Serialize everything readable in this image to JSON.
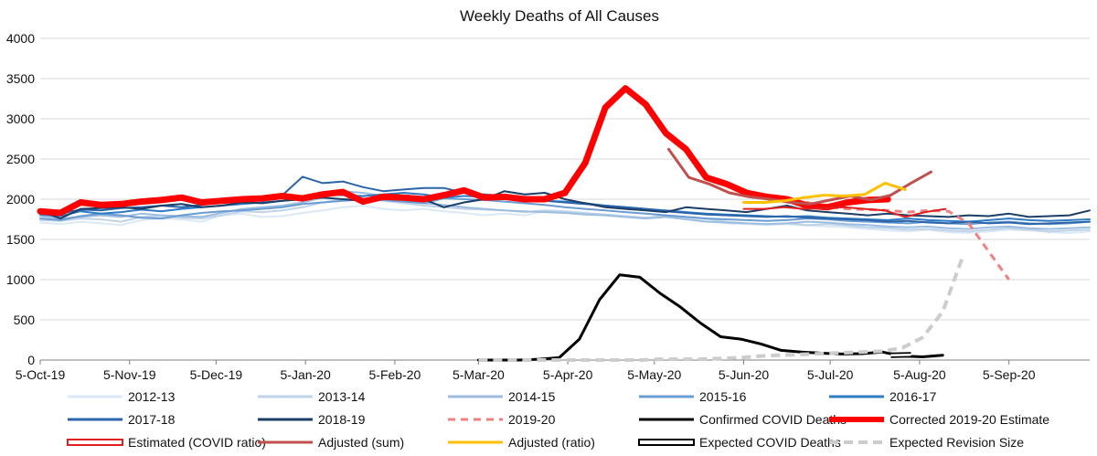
{
  "chart_data": {
    "type": "line",
    "title": "Weekly Deaths of All Causes",
    "xlabel": "",
    "ylabel": "",
    "ylim": [
      0,
      4000
    ],
    "yticks": [
      0,
      500,
      1000,
      1500,
      2000,
      2500,
      3000,
      3500,
      4000
    ],
    "x_date_range": [
      "2019-10-05",
      "2020-10-03"
    ],
    "x_ticks": [
      {
        "label": "5-Oct-19",
        "date": "2019-10-05"
      },
      {
        "label": "5-Nov-19",
        "date": "2019-11-05"
      },
      {
        "label": "5-Dec-19",
        "date": "2019-12-05"
      },
      {
        "label": "5-Jan-20",
        "date": "2020-01-05"
      },
      {
        "label": "5-Feb-20",
        "date": "2020-02-05"
      },
      {
        "label": "5-Mar-20",
        "date": "2020-03-05"
      },
      {
        "label": "5-Apr-20",
        "date": "2020-04-05"
      },
      {
        "label": "5-May-20",
        "date": "2020-05-05"
      },
      {
        "label": "5-Jun-20",
        "date": "2020-06-05"
      },
      {
        "label": "5-Jul-20",
        "date": "2020-07-05"
      },
      {
        "label": "5-Aug-20",
        "date": "2020-08-05"
      },
      {
        "label": "5-Sep-20",
        "date": "2020-09-05"
      }
    ],
    "grid": "horizontal",
    "legend_position": "bottom",
    "series": [
      {
        "name": "2012-13",
        "color": "#dbe8f5",
        "width": 2,
        "dash": "",
        "start": "2019-10-05",
        "values": [
          1710,
          1690,
          1720,
          1700,
          1680,
          1740,
          1760,
          1750,
          1720,
          1800,
          1820,
          1780,
          1790,
          1830,
          1860,
          1900,
          1920,
          1880,
          1860,
          1880,
          1850,
          1830,
          1800,
          1820,
          1800,
          1850,
          1840,
          1820,
          1800,
          1780,
          1760,
          1780,
          1760,
          1740,
          1700,
          1690,
          1680,
          1690,
          1670,
          1660,
          1650,
          1630,
          1610,
          1600,
          1620,
          1590,
          1580,
          1600,
          1620,
          1610,
          1590,
          1580,
          1600
        ]
      },
      {
        "name": "2013-14",
        "color": "#bfd3e9",
        "width": 2,
        "dash": "",
        "start": "2019-10-05",
        "values": [
          1740,
          1730,
          1760,
          1750,
          1720,
          1780,
          1790,
          1770,
          1760,
          1800,
          1850,
          1840,
          1860,
          1900,
          1960,
          2000,
          2020,
          1980,
          1950,
          1920,
          1900,
          1880,
          1870,
          1860,
          1840,
          1860,
          1850,
          1830,
          1810,
          1790,
          1770,
          1800,
          1780,
          1760,
          1720,
          1700,
          1690,
          1700,
          1680,
          1690,
          1670,
          1650,
          1640,
          1620,
          1630,
          1610,
          1600,
          1620,
          1640,
          1620,
          1600,
          1610,
          1620
        ]
      },
      {
        "name": "2014-15",
        "color": "#9dbde0",
        "width": 2,
        "dash": "",
        "start": "2019-10-05",
        "values": [
          1790,
          1760,
          1780,
          1800,
          1780,
          1820,
          1800,
          1790,
          1780,
          1830,
          1880,
          1900,
          1920,
          1960,
          2020,
          2100,
          2080,
          2040,
          1980,
          1950,
          1930,
          1900,
          1880,
          1860,
          1850,
          1840,
          1830,
          1810,
          1800,
          1780,
          1760,
          1780,
          1750,
          1720,
          1710,
          1700,
          1690,
          1700,
          1720,
          1710,
          1690,
          1680,
          1660,
          1650,
          1660,
          1640,
          1630,
          1650,
          1660,
          1640,
          1630,
          1640,
          1650
        ]
      },
      {
        "name": "2015-16",
        "color": "#6a9bd1",
        "width": 2,
        "dash": "",
        "start": "2019-10-05",
        "values": [
          1760,
          1740,
          1790,
          1820,
          1800,
          1770,
          1760,
          1800,
          1830,
          1850,
          1860,
          1880,
          1900,
          1940,
          1960,
          1980,
          2000,
          1990,
          1970,
          1950,
          2010,
          2000,
          1990,
          1970,
          1950,
          1930,
          1900,
          1880,
          1860,
          1840,
          1820,
          1800,
          1780,
          1760,
          1750,
          1740,
          1730,
          1740,
          1760,
          1750,
          1730,
          1720,
          1710,
          1700,
          1720,
          1700,
          1690,
          1710,
          1720,
          1700,
          1690,
          1700,
          1720
        ]
      },
      {
        "name": "2016-17",
        "color": "#2e7bc4",
        "width": 2,
        "dash": "",
        "start": "2019-10-05",
        "values": [
          1810,
          1790,
          1850,
          1820,
          1840,
          1870,
          1850,
          1880,
          1900,
          1920,
          1940,
          1960,
          1980,
          2000,
          2060,
          2050,
          2040,
          2060,
          2080,
          2060,
          2020,
          2040,
          2030,
          2010,
          1990,
          1980,
          1970,
          1950,
          1920,
          1900,
          1880,
          1860,
          1840,
          1820,
          1810,
          1800,
          1790,
          1780,
          1790,
          1770,
          1760,
          1750,
          1740,
          1760,
          1740,
          1730,
          1720,
          1740,
          1760,
          1740,
          1730,
          1740,
          1750
        ]
      },
      {
        "name": "2017-18",
        "color": "#2b64a8",
        "width": 2,
        "dash": "",
        "start": "2019-10-05",
        "values": [
          1840,
          1820,
          1870,
          1860,
          1890,
          1900,
          1920,
          1900,
          1930,
          1960,
          1980,
          2000,
          2050,
          2280,
          2200,
          2220,
          2150,
          2100,
          2120,
          2140,
          2140,
          2080,
          2060,
          2040,
          2000,
          1980,
          1960,
          1940,
          1920,
          1900,
          1880,
          1850,
          1830,
          1810,
          1800,
          1790,
          1780,
          1790,
          1770,
          1760,
          1750,
          1740,
          1720,
          1730,
          1710,
          1700,
          1720,
          1700,
          1710,
          1690,
          1700,
          1710,
          1720
        ]
      },
      {
        "name": "2018-19",
        "color": "#1c3d66",
        "width": 2,
        "dash": "",
        "start": "2019-10-05",
        "values": [
          1850,
          1760,
          1880,
          1890,
          1900,
          1880,
          1920,
          1940,
          1900,
          1920,
          1960,
          1950,
          1980,
          2000,
          2020,
          2000,
          1980,
          2020,
          2040,
          2000,
          1900,
          1960,
          2000,
          2100,
          2060,
          2080,
          2000,
          1950,
          1900,
          1880,
          1860,
          1840,
          1900,
          1880,
          1860,
          1840,
          1880,
          1920,
          1860,
          1840,
          1820,
          1800,
          1820,
          1800,
          1790,
          1780,
          1800,
          1790,
          1820,
          1780,
          1790,
          1800,
          1860
        ]
      },
      {
        "name": "2019-20",
        "color": "#f08080",
        "width": 3,
        "dash": "8 6",
        "start": "2019-10-05",
        "values": [
          1850,
          1830,
          1960,
          1930,
          1940,
          1970,
          1990,
          2020,
          1960,
          1980,
          2000,
          2010,
          2020,
          2010,
          2060,
          2090,
          1970,
          2030,
          2020,
          2000,
          2050,
          2110,
          2020,
          2030,
          2000,
          2000,
          2080,
          2450,
          3140,
          3380,
          3180,
          2820,
          2620,
          2270,
          2190,
          2080,
          2030,
          2000,
          1960,
          1900,
          1880,
          1870,
          1860,
          1840,
          1860,
          1850,
          1700,
          1350,
          1000
        ]
      },
      {
        "name": "Confirmed COVID Deaths",
        "color": "#000000",
        "width": 3,
        "dash": "",
        "start": "2020-03-05",
        "values": [
          0,
          0,
          0,
          10,
          30,
          260,
          750,
          1060,
          1030,
          830,
          660,
          460,
          290,
          260,
          200,
          120,
          100,
          85,
          75,
          80,
          100,
          50,
          40,
          60
        ]
      },
      {
        "name": "Corrected 2019-20 Estimate",
        "color": "#ff0000",
        "width": 7,
        "dash": "",
        "start": "2019-10-05",
        "values": [
          1850,
          1830,
          1960,
          1930,
          1940,
          1970,
          1990,
          2020,
          1960,
          1980,
          2000,
          2010,
          2040,
          2010,
          2060,
          2090,
          1970,
          2030,
          2020,
          2000,
          2050,
          2110,
          2020,
          2030,
          2000,
          2000,
          2080,
          2450,
          3140,
          3380,
          3180,
          2820,
          2620,
          2270,
          2190,
          2080,
          2030,
          2000,
          1920,
          1900,
          1960,
          1990,
          2000
        ]
      },
      {
        "name": "Estimated (COVID ratio)",
        "color": "#e02020",
        "width": 2,
        "dash": "",
        "start": "2020-06-05",
        "values": [
          1880,
          1880,
          1900,
          1880,
          1890,
          1900,
          1880,
          1860,
          1780,
          1840,
          1880
        ]
      },
      {
        "name": "Adjusted (sum)",
        "color": "#c0504d",
        "width": 3,
        "dash": "",
        "start": "2020-05-10",
        "values": [
          2620,
          2270,
          2190,
          2080,
          2030,
          2000,
          1960,
          1940,
          1990,
          2040,
          1990,
          2050,
          2200,
          2340
        ]
      },
      {
        "name": "Adjusted (ratio)",
        "color": "#ffc000",
        "width": 3,
        "dash": "",
        "start": "2020-06-05",
        "values": [
          1960,
          1960,
          1980,
          2020,
          2050,
          2040,
          2060,
          2200,
          2120
        ]
      },
      {
        "name": "Expected COVID Deaths",
        "color": "#000000",
        "width": 3,
        "dash": "",
        "start": "2020-07-26",
        "values": [
          60,
          65
        ]
      },
      {
        "name": "Expected Revision Size",
        "color": "#cccccc",
        "width": 4,
        "dash": "10 6",
        "start": "2020-03-05",
        "values": [
          0,
          0,
          0,
          0,
          0,
          0,
          0,
          0,
          0,
          10,
          10,
          10,
          20,
          30,
          50,
          60,
          70,
          80,
          90,
          100,
          110,
          150,
          280,
          600,
          1290
        ]
      }
    ]
  }
}
